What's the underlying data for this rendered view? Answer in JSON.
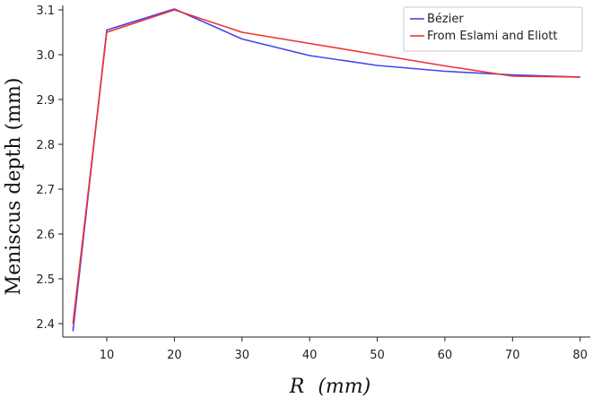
{
  "chart_data": {
    "type": "line",
    "title": "",
    "xlabel_var": "R",
    "xlabel_unit": "(mm)",
    "ylabel": "Meniscus depth (mm)",
    "xlim": [
      3.5,
      81.5
    ],
    "ylim": [
      2.37,
      3.11
    ],
    "xticks": [
      10,
      20,
      30,
      40,
      50,
      60,
      70,
      80
    ],
    "yticks": [
      2.4,
      2.5,
      2.6,
      2.7,
      2.8,
      2.9,
      3.0,
      3.1
    ],
    "ytick_labels": [
      "2.4",
      "2.5",
      "2.6",
      "2.7",
      "2.8",
      "2.9",
      "3.0",
      "3.1"
    ],
    "grid": false,
    "legend_position": "top-right",
    "series": [
      {
        "name": "Bézier",
        "color": "#4444ee",
        "x": [
          5,
          10,
          20,
          30,
          40,
          50,
          60,
          70,
          80
        ],
        "y": [
          2.383,
          3.055,
          3.102,
          3.035,
          2.998,
          2.976,
          2.963,
          2.955,
          2.95
        ]
      },
      {
        "name": "From Eslami and Eliott",
        "color": "#ee3333",
        "x": [
          5,
          10,
          20,
          30,
          40,
          50,
          60,
          70,
          80
        ],
        "y": [
          2.4,
          3.05,
          3.1,
          3.05,
          3.025,
          3.0,
          2.975,
          2.952,
          2.95
        ]
      }
    ]
  }
}
